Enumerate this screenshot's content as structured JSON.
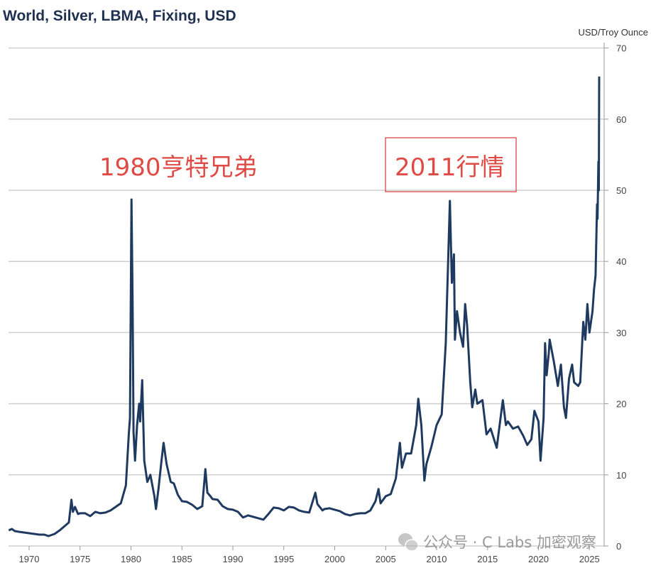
{
  "chart_data": {
    "type": "line",
    "title": "World, Silver, LBMA, Fixing, USD",
    "ylabel": "USD/Troy Ounce",
    "xlabel": "",
    "xlim": [
      1968,
      2026.5
    ],
    "ylim": [
      0,
      70
    ],
    "x_ticks": [
      "1970",
      "1975",
      "1980",
      "1985",
      "1990",
      "1995",
      "2000",
      "2005",
      "2010",
      "2015",
      "2020",
      "2025"
    ],
    "y_ticks": [
      "0",
      "10",
      "20",
      "30",
      "40",
      "50",
      "60",
      "70"
    ],
    "y_axis_position": "right",
    "grid": true,
    "line_color": "#1f3a60",
    "annotations": [
      {
        "text": "1980亨特兄弟",
        "x": 1980,
        "color": "#e04a44",
        "boxed": false
      },
      {
        "text": "2011行情",
        "x": 2011,
        "color": "#e04a44",
        "boxed": true
      }
    ],
    "series": [
      {
        "points": [
          [
            1968.0,
            2.2
          ],
          [
            1968.3,
            2.4
          ],
          [
            1968.6,
            2.1
          ],
          [
            1969.0,
            2.0
          ],
          [
            1969.5,
            1.9
          ],
          [
            1970.0,
            1.8
          ],
          [
            1970.5,
            1.7
          ],
          [
            1971.0,
            1.6
          ],
          [
            1971.5,
            1.6
          ],
          [
            1971.9,
            1.4
          ],
          [
            1972.5,
            1.7
          ],
          [
            1973.0,
            2.2
          ],
          [
            1973.5,
            2.8
          ],
          [
            1973.9,
            3.3
          ],
          [
            1974.15,
            6.5
          ],
          [
            1974.3,
            4.8
          ],
          [
            1974.5,
            5.5
          ],
          [
            1974.8,
            4.5
          ],
          [
            1975.0,
            4.6
          ],
          [
            1975.5,
            4.6
          ],
          [
            1976.0,
            4.2
          ],
          [
            1976.5,
            4.8
          ],
          [
            1977.0,
            4.6
          ],
          [
            1977.5,
            4.7
          ],
          [
            1978.0,
            5.0
          ],
          [
            1978.5,
            5.5
          ],
          [
            1979.0,
            6.0
          ],
          [
            1979.5,
            8.5
          ],
          [
            1979.8,
            16
          ],
          [
            1979.9,
            18
          ],
          [
            1980.05,
            48.7
          ],
          [
            1980.15,
            35
          ],
          [
            1980.25,
            16
          ],
          [
            1980.4,
            12
          ],
          [
            1980.6,
            17
          ],
          [
            1980.8,
            20
          ],
          [
            1980.9,
            17.5
          ],
          [
            1981.1,
            23.3
          ],
          [
            1981.3,
            12
          ],
          [
            1981.6,
            9
          ],
          [
            1981.9,
            10
          ],
          [
            1982.3,
            7
          ],
          [
            1982.45,
            5.2
          ],
          [
            1982.7,
            8
          ],
          [
            1983.0,
            12
          ],
          [
            1983.2,
            14.5
          ],
          [
            1983.5,
            11.5
          ],
          [
            1983.9,
            9
          ],
          [
            1984.2,
            8.8
          ],
          [
            1984.6,
            7.2
          ],
          [
            1985.0,
            6.3
          ],
          [
            1985.5,
            6.2
          ],
          [
            1986.0,
            5.8
          ],
          [
            1986.5,
            5.2
          ],
          [
            1987.0,
            5.6
          ],
          [
            1987.3,
            10.8
          ],
          [
            1987.5,
            7.5
          ],
          [
            1987.8,
            7
          ],
          [
            1988.0,
            6.6
          ],
          [
            1988.5,
            6.5
          ],
          [
            1989.0,
            5.6
          ],
          [
            1989.5,
            5.2
          ],
          [
            1990.0,
            5.1
          ],
          [
            1990.5,
            4.8
          ],
          [
            1991.0,
            4.0
          ],
          [
            1991.5,
            4.3
          ],
          [
            1992.0,
            4.1
          ],
          [
            1992.5,
            3.9
          ],
          [
            1993.0,
            3.7
          ],
          [
            1993.5,
            4.5
          ],
          [
            1994.0,
            5.4
          ],
          [
            1994.5,
            5.3
          ],
          [
            1995.0,
            5.0
          ],
          [
            1995.5,
            5.5
          ],
          [
            1996.0,
            5.4
          ],
          [
            1996.5,
            5.0
          ],
          [
            1997.0,
            4.8
          ],
          [
            1997.5,
            4.7
          ],
          [
            1998.1,
            7.5
          ],
          [
            1998.3,
            5.9
          ],
          [
            1998.8,
            5.0
          ],
          [
            1999.0,
            5.2
          ],
          [
            1999.5,
            5.3
          ],
          [
            2000.0,
            5.1
          ],
          [
            2000.5,
            4.9
          ],
          [
            2001.0,
            4.5
          ],
          [
            2001.5,
            4.3
          ],
          [
            2002.0,
            4.5
          ],
          [
            2002.5,
            4.6
          ],
          [
            2003.0,
            4.6
          ],
          [
            2003.5,
            5.0
          ],
          [
            2004.0,
            6.3
          ],
          [
            2004.3,
            8
          ],
          [
            2004.5,
            6
          ],
          [
            2005.0,
            7
          ],
          [
            2005.5,
            7.3
          ],
          [
            2006.0,
            9.5
          ],
          [
            2006.4,
            14.5
          ],
          [
            2006.6,
            11
          ],
          [
            2007.0,
            13
          ],
          [
            2007.5,
            13
          ],
          [
            2008.0,
            17
          ],
          [
            2008.2,
            20.7
          ],
          [
            2008.5,
            17
          ],
          [
            2008.8,
            9.2
          ],
          [
            2009.0,
            11.5
          ],
          [
            2009.5,
            14
          ],
          [
            2010.0,
            17
          ],
          [
            2010.5,
            18.5
          ],
          [
            2010.9,
            28.5
          ],
          [
            2011.3,
            48.5
          ],
          [
            2011.5,
            37
          ],
          [
            2011.7,
            41
          ],
          [
            2011.8,
            29
          ],
          [
            2012.0,
            33
          ],
          [
            2012.3,
            30
          ],
          [
            2012.6,
            28
          ],
          [
            2012.8,
            34
          ],
          [
            2013.0,
            31
          ],
          [
            2013.3,
            23
          ],
          [
            2013.5,
            19.5
          ],
          [
            2013.8,
            22
          ],
          [
            2014.0,
            20
          ],
          [
            2014.5,
            20.5
          ],
          [
            2014.9,
            15.7
          ],
          [
            2015.3,
            16.5
          ],
          [
            2015.9,
            13.8
          ],
          [
            2016.5,
            20.5
          ],
          [
            2016.8,
            17
          ],
          [
            2017.0,
            17.5
          ],
          [
            2017.5,
            16.5
          ],
          [
            2018.0,
            16.8
          ],
          [
            2018.5,
            15.5
          ],
          [
            2018.9,
            14.2
          ],
          [
            2019.3,
            15
          ],
          [
            2019.6,
            19
          ],
          [
            2020.0,
            17.5
          ],
          [
            2020.2,
            12
          ],
          [
            2020.5,
            18
          ],
          [
            2020.65,
            28.5
          ],
          [
            2020.8,
            24
          ],
          [
            2021.0,
            27
          ],
          [
            2021.1,
            29
          ],
          [
            2021.5,
            26
          ],
          [
            2021.9,
            22.5
          ],
          [
            2022.2,
            25.5
          ],
          [
            2022.5,
            19.5
          ],
          [
            2022.7,
            18
          ],
          [
            2023.0,
            23.5
          ],
          [
            2023.3,
            25.5
          ],
          [
            2023.5,
            23
          ],
          [
            2023.9,
            22.5
          ],
          [
            2024.1,
            23
          ],
          [
            2024.4,
            31.5
          ],
          [
            2024.6,
            29
          ],
          [
            2024.8,
            34
          ],
          [
            2025.0,
            30
          ],
          [
            2025.3,
            33
          ],
          [
            2025.45,
            36
          ],
          [
            2025.6,
            38
          ],
          [
            2025.75,
            48
          ],
          [
            2025.8,
            46
          ],
          [
            2025.88,
            54
          ],
          [
            2025.92,
            50
          ],
          [
            2025.96,
            66
          ]
        ]
      }
    ]
  },
  "watermark": {
    "text": "公众号 · C Labs 加密观察",
    "icon": "wechat-icon"
  }
}
